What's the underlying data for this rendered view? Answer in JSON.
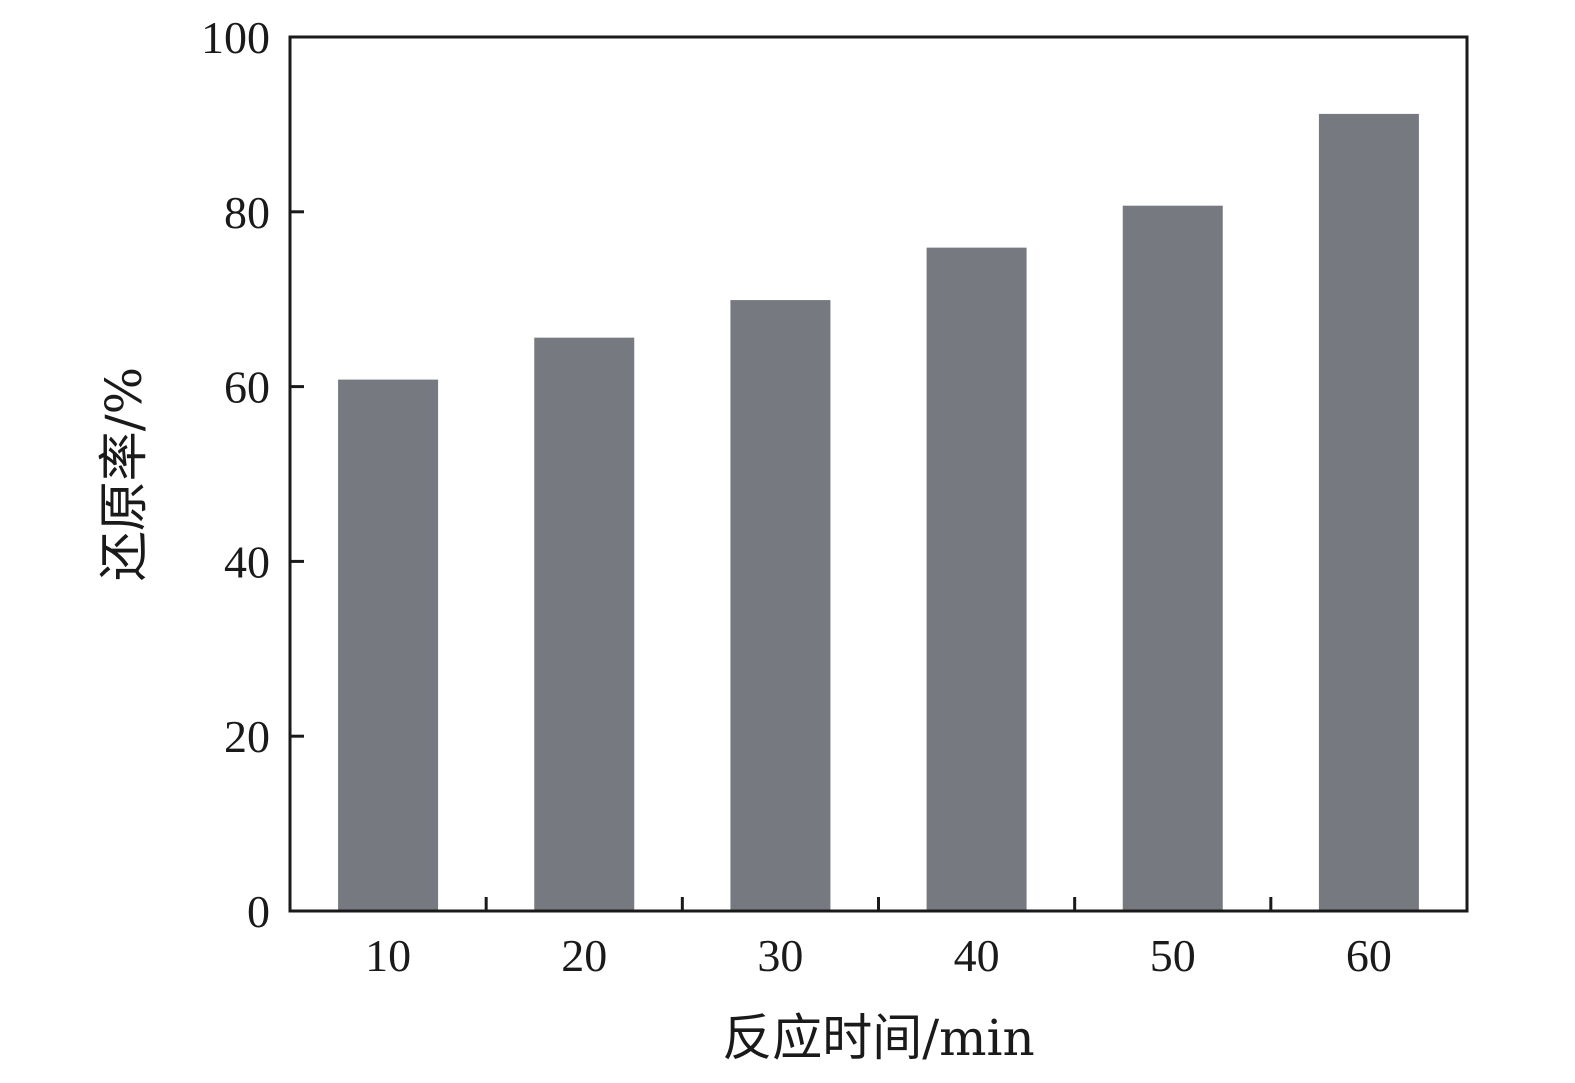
{
  "chart_data": {
    "type": "bar",
    "categories": [
      "10",
      "20",
      "30",
      "40",
      "50",
      "60"
    ],
    "values": [
      60.8,
      65.6,
      69.9,
      75.9,
      80.7,
      91.2
    ],
    "title": "",
    "xlabel": "反应时间/min",
    "ylabel": "还原率/%",
    "ylim": [
      0,
      100
    ],
    "yticks": [
      0,
      20,
      40,
      60,
      80,
      100
    ],
    "grid": false,
    "bar_color": "#767a80",
    "axis_color": "#1a1a1a"
  }
}
